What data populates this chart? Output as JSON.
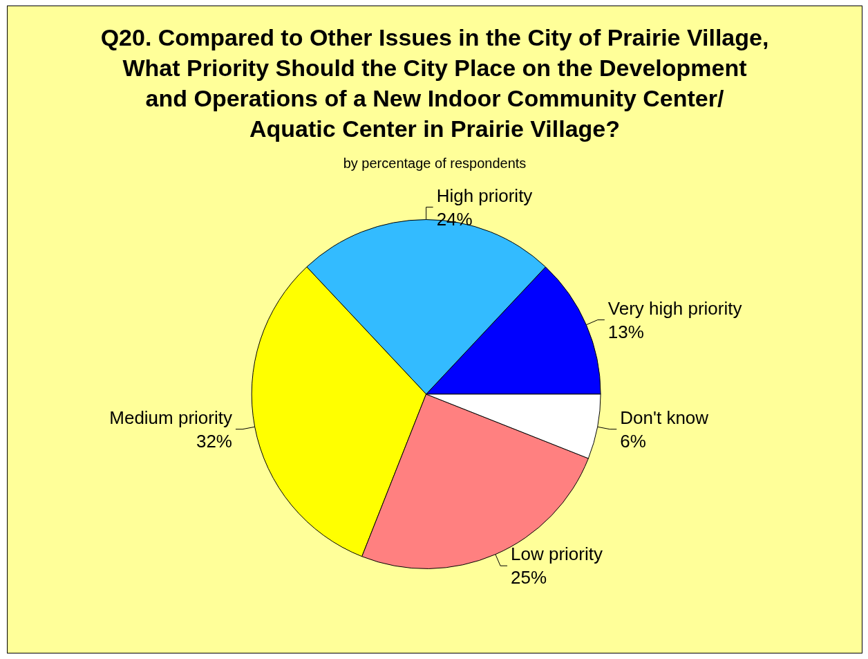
{
  "chart_data": {
    "type": "pie",
    "title": "Q20. Compared to Other Issues in the City of Prairie Village,\nWhat Priority Should the City Place on the Development\nand Operations of a New Indoor Community Center/\nAquatic Center in Prairie Village?",
    "subtitle": "by percentage of respondents",
    "categories": [
      "Very high priority",
      "High priority",
      "Medium priority",
      "Low priority",
      "Don't know"
    ],
    "values": [
      13,
      24,
      32,
      25,
      6
    ],
    "colors": [
      "#0000ff",
      "#33bbff",
      "#ffff00",
      "#ff8080",
      "#ffffff"
    ],
    "value_labels": [
      "13%",
      "24%",
      "32%",
      "25%",
      "6%"
    ],
    "legend": false
  }
}
